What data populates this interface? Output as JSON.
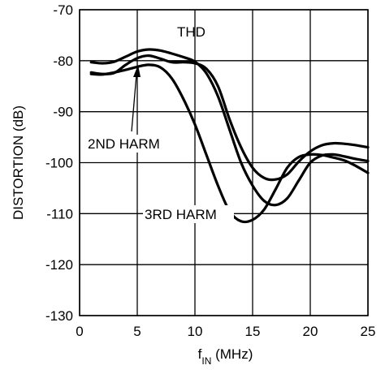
{
  "chart_data": {
    "type": "line",
    "title": "",
    "xlabel": "f",
    "xlabel_subscript": "IN",
    "xlabel_suffix": " (MHz)",
    "ylabel": "DISTORTION (dB)",
    "xlim": [
      0,
      25
    ],
    "ylim": [
      -130,
      -70
    ],
    "xticks": [
      0,
      5,
      10,
      15,
      20,
      25
    ],
    "yticks": [
      -70,
      -80,
      -90,
      -100,
      -110,
      -120,
      -130
    ],
    "xtick_labels": [
      "0",
      "5",
      "10",
      "15",
      "20",
      "25"
    ],
    "ytick_labels": [
      "-70",
      "-80",
      "-90",
      "-100",
      "-110",
      "-120",
      "-130"
    ],
    "grid": true,
    "series": [
      {
        "name": "THD",
        "x": [
          1,
          2,
          3,
          4,
          5,
          6,
          7,
          8,
          9,
          10,
          11,
          12,
          13,
          14,
          15,
          16,
          17,
          18,
          19,
          20,
          21,
          22,
          23,
          24,
          25
        ],
        "y": [
          -80.3,
          -80.5,
          -80.2,
          -79.2,
          -78.2,
          -77.8,
          -78.0,
          -78.6,
          -79.3,
          -80.2,
          -82.5,
          -87.0,
          -93.5,
          -100.0,
          -104.5,
          -107.5,
          -108.3,
          -107.0,
          -103.5,
          -100.0,
          -98.6,
          -98.4,
          -98.8,
          -99.3,
          -99.7
        ]
      },
      {
        "name": "2ND HARM",
        "x": [
          1,
          2,
          3,
          4,
          5,
          6,
          7,
          8,
          9,
          10,
          11,
          12,
          13,
          14,
          15,
          16,
          17,
          18,
          19,
          20,
          21,
          22,
          23,
          24,
          25
        ],
        "y": [
          -82.3,
          -82.6,
          -82.4,
          -80.8,
          -79.5,
          -79.0,
          -79.6,
          -80.3,
          -80.3,
          -80.5,
          -81.6,
          -85.0,
          -91.5,
          -97.0,
          -101.0,
          -103.0,
          -103.3,
          -102.3,
          -99.8,
          -97.8,
          -96.6,
          -96.2,
          -96.3,
          -96.6,
          -97.0
        ]
      },
      {
        "name": "3RD HARM",
        "x": [
          1,
          2,
          3,
          4,
          5,
          6,
          7,
          8,
          9,
          10,
          11,
          12,
          13,
          14,
          15,
          16,
          17,
          18,
          19,
          20,
          21,
          22,
          23,
          24,
          25
        ],
        "y": [
          -82.6,
          -82.7,
          -82.3,
          -81.8,
          -81.2,
          -80.8,
          -81.3,
          -83.5,
          -87.5,
          -92.5,
          -98.5,
          -104.5,
          -109.5,
          -111.5,
          -111.2,
          -109.2,
          -105.2,
          -101.0,
          -98.9,
          -98.4,
          -98.5,
          -99.0,
          -99.6,
          -100.7,
          -102.0
        ]
      }
    ],
    "annotations": [
      "THD",
      "2ND HARM",
      "3RD HARM"
    ]
  }
}
